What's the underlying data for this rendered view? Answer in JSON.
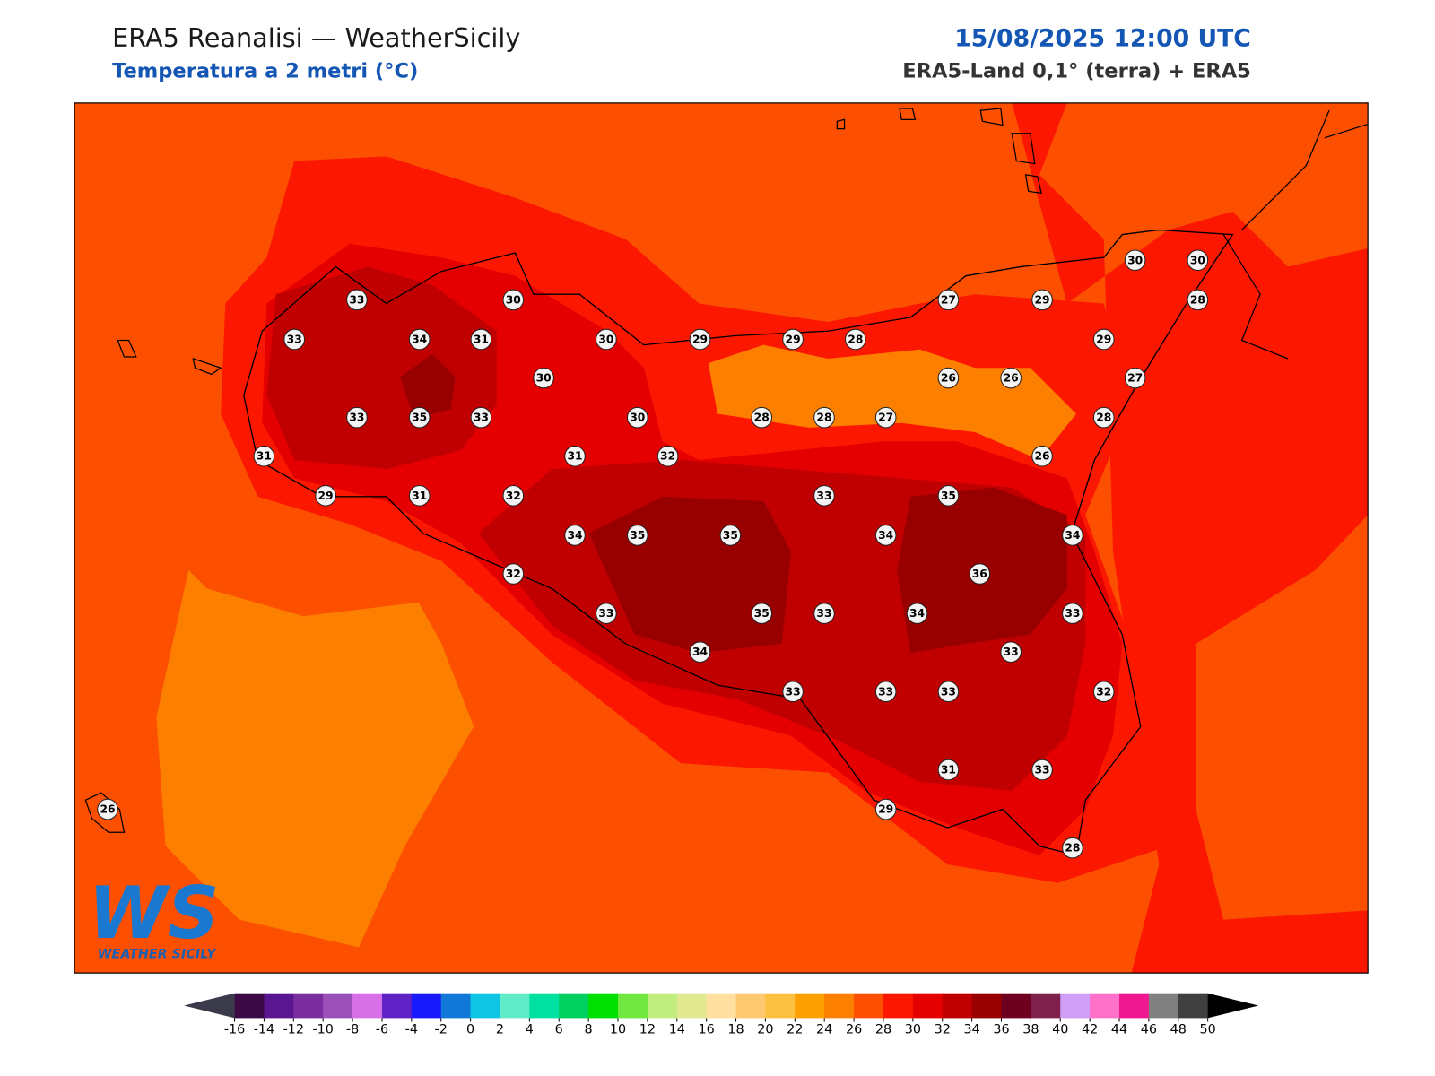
{
  "header": {
    "title": "ERA5 Reanalisi — WeatherSicily",
    "subtitle": "Temperatura a 2 metri (°C)",
    "date": "15/08/2025 12:00 UTC",
    "source": "ERA5-Land 0,1° (terra) + ERA5"
  },
  "stations": [
    33,
    30,
    27,
    29,
    28,
    30,
    30,
    33,
    34,
    31,
    30,
    29,
    29,
    28,
    29,
    30,
    26,
    26,
    27,
    33,
    35,
    33,
    30,
    28,
    28,
    27,
    28,
    31,
    31,
    32,
    26,
    29,
    31,
    32,
    33,
    35,
    34,
    35,
    35,
    34,
    34,
    32,
    36,
    33,
    35,
    33,
    34,
    33,
    34,
    33,
    33,
    33,
    33,
    32,
    31,
    33,
    26,
    29,
    28
  ],
  "colorbar": {
    "ticks": [
      -16,
      -14,
      -12,
      -10,
      -8,
      -6,
      -4,
      -2,
      0,
      2,
      4,
      6,
      8,
      10,
      12,
      14,
      16,
      18,
      20,
      22,
      24,
      26,
      28,
      30,
      32,
      34,
      36,
      38,
      40,
      42,
      44,
      46,
      48,
      50
    ],
    "colors": [
      "#3b0a45",
      "#5a1690",
      "#7a2ea0",
      "#9b4fb8",
      "#d870e8",
      "#5f22c4",
      "#1a1aff",
      "#1178d8",
      "#10c4e4",
      "#60ecc8",
      "#00e0a0",
      "#00d060",
      "#00e000",
      "#70e840",
      "#c0ec80",
      "#e0e890",
      "#ffe0a0",
      "#fcc870",
      "#fcc040",
      "#fca000",
      "#fc7f00",
      "#fc5000",
      "#fc1800",
      "#e40000",
      "#c00000",
      "#980000",
      "#6e0020",
      "#80204c",
      "#d0a0f8",
      "#ff70c8",
      "#f01890",
      "#808080",
      "#404040"
    ],
    "under": "#3a3a4a",
    "over": "#000000"
  },
  "logo": {
    "mark": "WS",
    "name": "WEATHER SICILY"
  }
}
